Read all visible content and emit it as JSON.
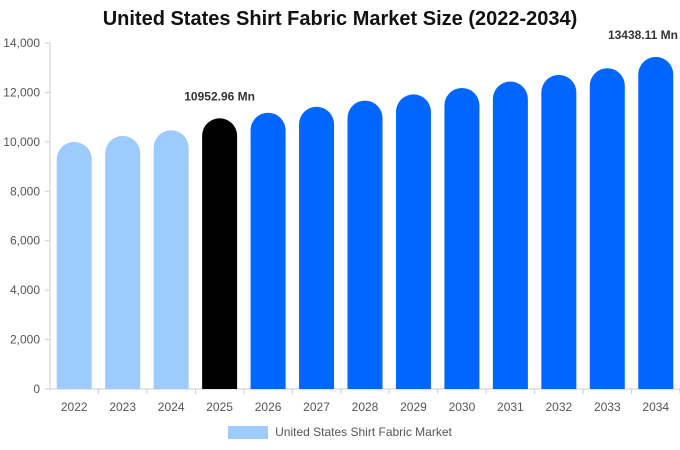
{
  "chart_data": {
    "type": "bar",
    "title": "United States Shirt Fabric Market Size (2022-2034)",
    "categories": [
      "2022",
      "2023",
      "2024",
      "2025",
      "2026",
      "2027",
      "2028",
      "2029",
      "2030",
      "2031",
      "2032",
      "2033",
      "2034"
    ],
    "series": [
      {
        "name": "United States Shirt Fabric Market",
        "values": [
          10000,
          10240,
          10470,
          10952.96,
          11180,
          11420,
          11670,
          11920,
          12180,
          12440,
          12710,
          12980,
          13438.11
        ]
      }
    ],
    "ylim": [
      0,
      14000
    ],
    "yticks": [
      0,
      2000,
      4000,
      6000,
      8000,
      10000,
      12000,
      14000
    ],
    "ytick_labels": [
      "0",
      "2,000",
      "4,000",
      "6,000",
      "8,000",
      "10,000",
      "12,000",
      "14,000"
    ],
    "annotations": [
      {
        "category": "2025",
        "text": "10952.96 Mn"
      },
      {
        "category": "2034",
        "text": "13438.11 Mn"
      }
    ],
    "bar_colors": {
      "historical": "#9ecbff",
      "base_year": "#000000",
      "forecast": "#0066ff"
    },
    "historical_categories": [
      "2022",
      "2023",
      "2024"
    ],
    "base_year_category": "2025",
    "legend_color": "#9ecbff",
    "legend_position": "bottom-center",
    "grid": false
  }
}
